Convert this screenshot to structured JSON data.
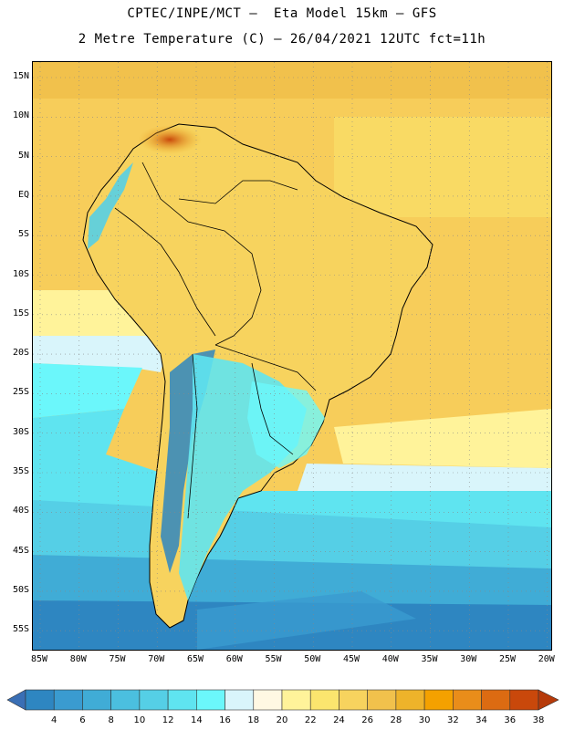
{
  "header": {
    "line1": "CPTEC/INPE/MCT –  Eta Model 15km – GFS",
    "line2": "2 Metre Temperature (C) – 26/04/2021 12UTC fct=11h"
  },
  "map": {
    "lat_ticks": [
      "15N",
      "10N",
      "5N",
      "EQ",
      "5S",
      "10S",
      "15S",
      "20S",
      "25S",
      "30S",
      "35S",
      "40S",
      "45S",
      "50S",
      "55S"
    ],
    "lon_ticks": [
      "85W",
      "80W",
      "75W",
      "70W",
      "65W",
      "60W",
      "55W",
      "50W",
      "45W",
      "40W",
      "35W",
      "30W",
      "25W",
      "20W"
    ]
  },
  "legend": {
    "labels": [
      "4",
      "6",
      "8",
      "10",
      "12",
      "14",
      "16",
      "18",
      "20",
      "22",
      "24",
      "26",
      "28",
      "30",
      "32",
      "34",
      "36",
      "38"
    ],
    "colors": [
      "#3a6fb5",
      "#2e86c1",
      "#3a9bd0",
      "#40acd6",
      "#4bbfdf",
      "#55cfe6",
      "#5fe4f0",
      "#6bf7fb",
      "#d9f5fb",
      "#fff8e3",
      "#fff39a",
      "#fbe56e",
      "#f7d35e",
      "#f1c14c",
      "#eeb32a",
      "#f4a100",
      "#e98d1a",
      "#dc6b12",
      "#c9480b",
      "#b63a0a"
    ],
    "left_arrow_color": "#3a6fb5",
    "right_arrow_color": "#b63a0a"
  }
}
